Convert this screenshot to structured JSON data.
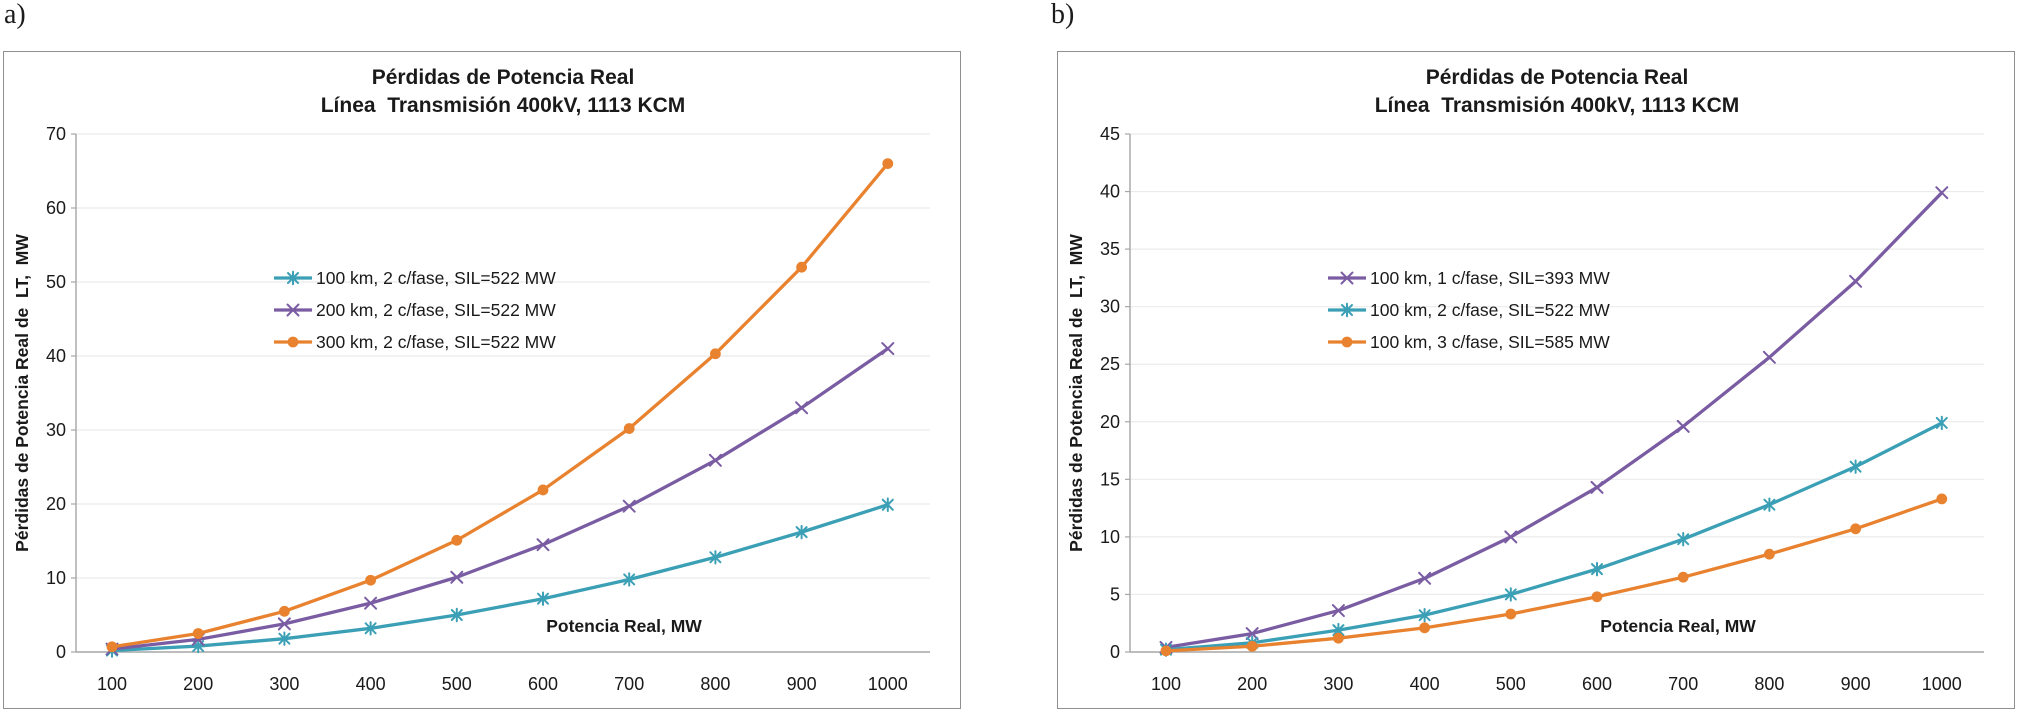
{
  "panels": [
    {
      "label": "a)"
    },
    {
      "label": "b)"
    }
  ],
  "chart_data": [
    {
      "type": "line",
      "title": "Pérdidas de Potencia Real",
      "subtitle": "Línea  Transmisión 400kV, 1113 KCM",
      "xlabel": "Potencia Real, MW",
      "ylabel": "Pérdidas de Potencia Real de  LT,  MW",
      "x": [
        100,
        200,
        300,
        400,
        500,
        600,
        700,
        800,
        900,
        1000
      ],
      "ylim": [
        0,
        70
      ],
      "ytick_step": 10,
      "grid": true,
      "legend_position": "inside-left-middle",
      "series": [
        {
          "name": "100 km, 2 c/fase, SIL=522 MW",
          "color": "#3BA0B5",
          "marker": "asterisk",
          "values": [
            0.2,
            0.8,
            1.8,
            3.2,
            5.0,
            7.2,
            9.8,
            12.8,
            16.2,
            19.9
          ]
        },
        {
          "name": "200 km, 2 c/fase, SIL=522 MW",
          "color": "#7A5CA3",
          "marker": "x",
          "values": [
            0.4,
            1.7,
            3.8,
            6.6,
            10.1,
            14.5,
            19.7,
            25.9,
            33.0,
            41.0
          ]
        },
        {
          "name": "300 km, 2 c/fase, SIL=522 MW",
          "color": "#E8822F",
          "marker": "circle",
          "values": [
            0.7,
            2.5,
            5.5,
            9.7,
            15.1,
            21.9,
            30.2,
            40.3,
            52.0,
            66.0
          ]
        }
      ]
    },
    {
      "type": "line",
      "title": "Pérdidas de Potencia Real",
      "subtitle": "Línea  Transmisión 400kV, 1113 KCM",
      "xlabel": "Potencia Real, MW",
      "ylabel": "Pérdidas de Potencia Real de  LT,  MW",
      "x": [
        100,
        200,
        300,
        400,
        500,
        600,
        700,
        800,
        900,
        1000
      ],
      "ylim": [
        0,
        45
      ],
      "ytick_step": 5,
      "grid": true,
      "legend_position": "inside-left-middle",
      "series": [
        {
          "name": "100 km, 1 c/fase, SIL=393 MW",
          "color": "#7A5CA3",
          "marker": "x",
          "values": [
            0.4,
            1.6,
            3.6,
            6.4,
            10.0,
            14.3,
            19.6,
            25.6,
            32.2,
            39.9
          ]
        },
        {
          "name": "100 km, 2 c/fase, SIL=522 MW",
          "color": "#3BA0B5",
          "marker": "asterisk",
          "values": [
            0.2,
            0.8,
            1.9,
            3.2,
            5.0,
            7.2,
            9.8,
            12.8,
            16.1,
            19.9
          ]
        },
        {
          "name": "100 km, 3 c/fase, SIL=585 MW",
          "color": "#E8822F",
          "marker": "circle",
          "values": [
            0.1,
            0.5,
            1.2,
            2.1,
            3.3,
            4.8,
            6.5,
            8.5,
            10.7,
            13.3
          ]
        }
      ]
    }
  ],
  "style": {
    "grid_color": "#ebebeb",
    "axis_color": "#a6a6a6",
    "panel_border_color": "#8f8f8f",
    "text_color": "#1a1a1a"
  }
}
